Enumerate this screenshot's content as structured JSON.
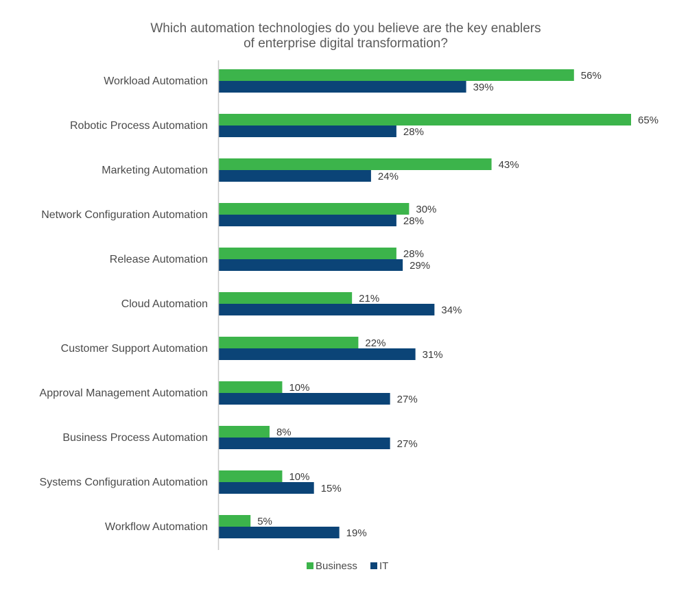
{
  "chart_data": {
    "type": "bar",
    "orientation": "horizontal",
    "title_lines": [
      "Which automation technologies do you believe are the key enablers",
      "of enterprise digital transformation?"
    ],
    "categories": [
      "Workload Automation",
      "Robotic Process Automation",
      "Marketing Automation",
      "Network Configuration Automation",
      "Release Automation",
      "Cloud Automation",
      "Customer Support Automation",
      "Approval Management Automation",
      "Business Process Automation",
      "Systems Configuration Automation",
      "Workflow Automation"
    ],
    "series": [
      {
        "name": "Business",
        "color": "#3cb44b",
        "values": [
          56,
          65,
          43,
          30,
          28,
          21,
          22,
          10,
          8,
          10,
          5
        ]
      },
      {
        "name": "IT",
        "color": "#0b4477",
        "values": [
          39,
          28,
          24,
          28,
          29,
          34,
          31,
          27,
          27,
          15,
          19
        ]
      }
    ],
    "value_suffix": "%",
    "xlim": [
      0,
      65
    ],
    "grid": false,
    "legend_position": "bottom-center",
    "axis_color": "#c8c8c8"
  }
}
